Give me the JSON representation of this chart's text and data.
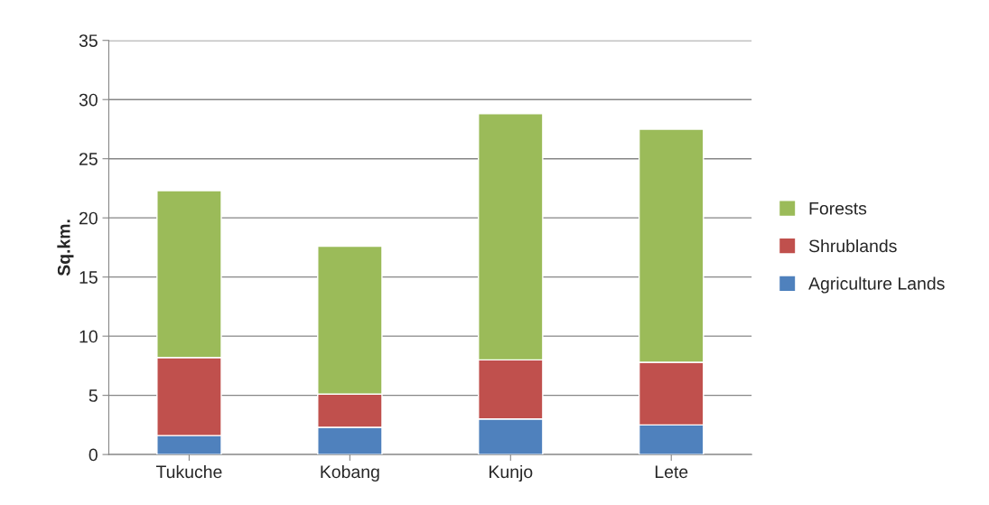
{
  "chart_data": {
    "type": "bar",
    "stacked": true,
    "ylabel": "Sq.km.",
    "categories": [
      "Tukuche",
      "Kobang",
      "Kunjo",
      "Lete"
    ],
    "series": [
      {
        "name": "Agriculture Lands",
        "color": "#4f81bd",
        "values": [
          1.6,
          2.3,
          3.0,
          2.5
        ]
      },
      {
        "name": "Shrublands",
        "color": "#c0504d",
        "values": [
          6.6,
          2.8,
          5.0,
          5.3
        ]
      },
      {
        "name": "Forests",
        "color": "#9bbb59",
        "values": [
          14.1,
          12.5,
          20.8,
          19.7
        ]
      }
    ],
    "ylim": [
      0,
      35
    ],
    "yticks": [
      0,
      5,
      10,
      15,
      20,
      25,
      30,
      35
    ],
    "grid": "y",
    "legend": "right"
  }
}
